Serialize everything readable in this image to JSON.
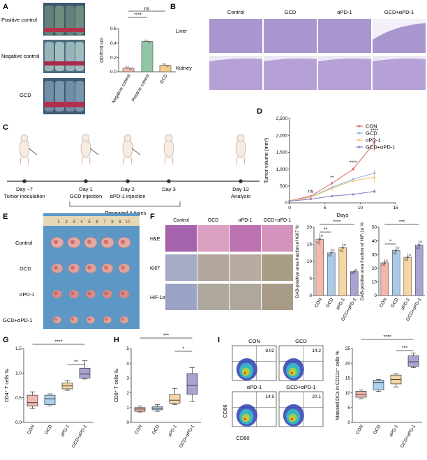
{
  "panels": {
    "A": {
      "letter": "A",
      "image_labels": [
        "Positive control",
        "Negative control",
        "GCD"
      ],
      "chart_data": {
        "type": "bar",
        "ylabel": "OD/570 nm",
        "categories": [
          "Negative control",
          "Positive control",
          "GCD"
        ],
        "values": [
          0.05,
          0.42,
          0.09
        ],
        "ylim": [
          0,
          0.6
        ],
        "yticks": [
          "0.0",
          "0.2",
          "0.4",
          "0.6"
        ],
        "sig": [
          "****",
          "ns"
        ],
        "colors": [
          "#f3b6b0",
          "#8fc7a6",
          "#f4d08f"
        ]
      }
    },
    "B": {
      "letter": "B",
      "columns": [
        "Control",
        "GCD",
        "αPD-1",
        "GCD+αPD-1"
      ],
      "rows": [
        "Liver",
        "Kidney"
      ]
    },
    "C": {
      "letter": "C",
      "timeline": [
        {
          "day": "Day −7",
          "event": "Tumor inoculation"
        },
        {
          "day": "Day 1",
          "event": "GCD injection"
        },
        {
          "day": "Day 2",
          "event": "αPD-1 injection"
        },
        {
          "day": "Day 3",
          "event": ""
        },
        {
          "day": "Day 12",
          "event": "Analysis"
        }
      ],
      "repeat": "Repeated 4 times"
    },
    "D": {
      "letter": "D",
      "chart_data": {
        "type": "line",
        "xlabel": "Days",
        "ylabel": "Tumor volume (mm³)",
        "x": [
          0,
          3,
          6,
          9,
          12
        ],
        "xticks": [
          "0",
          "5",
          "10",
          "15"
        ],
        "xlim": [
          0,
          15
        ],
        "ylim": [
          0,
          2500
        ],
        "yticks": [
          "0",
          "500",
          "1,000",
          "1,500",
          "2,000",
          "2,500"
        ],
        "series": [
          {
            "name": "CON",
            "color": "#e07070",
            "values": [
              60,
              200,
              580,
              1000,
              1780
            ],
            "err": [
              5,
              20,
              40,
              60,
              230
            ]
          },
          {
            "name": "GCD",
            "color": "#8fb9e0",
            "values": [
              55,
              170,
              460,
              700,
              880
            ],
            "err": [
              5,
              20,
              30,
              50,
              90
            ]
          },
          {
            "name": "αPD-1",
            "color": "#f2c27a",
            "values": [
              55,
              160,
              430,
              660,
              750
            ],
            "err": [
              5,
              20,
              30,
              60,
              150
            ]
          },
          {
            "name": "GCD+αPD-1",
            "color": "#8a84c7",
            "values": [
              50,
              110,
              200,
              250,
              340
            ],
            "err": [
              5,
              15,
              25,
              30,
              60
            ]
          }
        ],
        "sig": [
          {
            "x": 3,
            "text": "ns"
          },
          {
            "x": 6,
            "text": "**"
          },
          {
            "x": 9,
            "text": "****"
          },
          {
            "x": 12,
            "text": "****"
          }
        ]
      }
    },
    "E": {
      "letter": "E",
      "rows": [
        "Control",
        "GCD",
        "αPD-1",
        "GCD+αPD-1"
      ],
      "ruler": [
        "1",
        "2",
        "3",
        "4",
        "5",
        "6",
        "7",
        "8",
        "9",
        "10"
      ]
    },
    "F": {
      "letter": "F",
      "columns": [
        "Control",
        "GCD",
        "αPD-1",
        "GCD+αPD-1"
      ],
      "rows": [
        "H&E",
        "Ki67",
        "HIF-1α"
      ],
      "chart_data": [
        {
          "type": "bar",
          "ylabel": "DAB-positive area fraction of Ki67 %",
          "categories": [
            "CON",
            "GCD",
            "αPD-1",
            "GCD+αPD-1"
          ],
          "values": [
            16.5,
            12.5,
            14,
            7
          ],
          "ylim": [
            0,
            20
          ],
          "yticks": [
            "0",
            "5",
            "10",
            "15",
            "20"
          ],
          "sig": [
            "**",
            "****"
          ]
        },
        {
          "type": "bar",
          "ylabel": "DAB-positive area fraction of HIF-1α %",
          "categories": [
            "CON",
            "GCD",
            "αPD-1",
            "GCD+αPD-1"
          ],
          "values": [
            24,
            33,
            28,
            37
          ],
          "ylim": [
            0,
            50
          ],
          "yticks": [
            "0",
            "10",
            "20",
            "30",
            "40",
            "50"
          ],
          "sig": [
            "*",
            "***"
          ]
        }
      ]
    },
    "G": {
      "letter": "G",
      "chart_data": {
        "type": "box",
        "ylabel": "CD4⁺ T cells ‰",
        "categories": [
          "CON",
          "GCD",
          "αPD-1",
          "GCD+αPD-1"
        ],
        "ylim": [
          0,
          1.5
        ],
        "yticks": [
          "0.0",
          "0.5",
          "1.0",
          "1.5"
        ],
        "boxes": [
          [
            0.28,
            0.33,
            0.4,
            0.55,
            0.62
          ],
          [
            0.33,
            0.36,
            0.48,
            0.55,
            0.58
          ],
          [
            0.65,
            0.68,
            0.74,
            0.8,
            0.85
          ],
          [
            0.88,
            0.9,
            0.98,
            1.1,
            1.25
          ]
        ],
        "sig": [
          "****",
          "**"
        ]
      }
    },
    "H": {
      "letter": "H",
      "chart_data": {
        "type": "box",
        "ylabel": "CD8⁺ T cells ‰",
        "categories": [
          "CON",
          "GCD",
          "αPD-1",
          "GCD+αPD-1"
        ],
        "ylim": [
          0,
          5
        ],
        "yticks": [
          "0",
          "1",
          "2",
          "3",
          "4",
          "5"
        ],
        "boxes": [
          [
            0.7,
            0.75,
            0.9,
            1.0,
            1.1
          ],
          [
            0.75,
            0.85,
            0.95,
            1.05,
            1.2
          ],
          [
            1.2,
            1.3,
            1.5,
            1.9,
            2.3
          ],
          [
            1.4,
            1.9,
            2.5,
            3.3,
            3.7
          ]
        ],
        "sig": [
          "***",
          "*"
        ]
      }
    },
    "I": {
      "letter": "I",
      "flow": [
        {
          "label": "CON",
          "value": "8.02"
        },
        {
          "label": "GCD",
          "value": "14.2"
        },
        {
          "label": "αPD-1",
          "value": "14.9"
        },
        {
          "label": "GCD+αPD-1",
          "value": "20.1"
        }
      ],
      "xlabel": "CD80",
      "ylabel": "CD86",
      "chart_data": {
        "type": "box",
        "ylabel": "Matured DCs in CD11c⁺ cells %",
        "categories": [
          "CON",
          "GCD",
          "αPD-1",
          "GCD+αPD-1"
        ],
        "ylim": [
          0,
          25
        ],
        "yticks": [
          "0",
          "5",
          "10",
          "15",
          "20",
          "25"
        ],
        "boxes": [
          [
            8,
            8.5,
            9.5,
            10.5,
            11
          ],
          [
            10.5,
            11,
            13.5,
            14.2,
            14.5
          ],
          [
            12,
            13,
            14.5,
            16,
            16.5
          ],
          [
            18.5,
            19,
            20.5,
            22.5,
            23.5
          ]
        ],
        "sig": [
          "****",
          "***"
        ]
      }
    }
  }
}
